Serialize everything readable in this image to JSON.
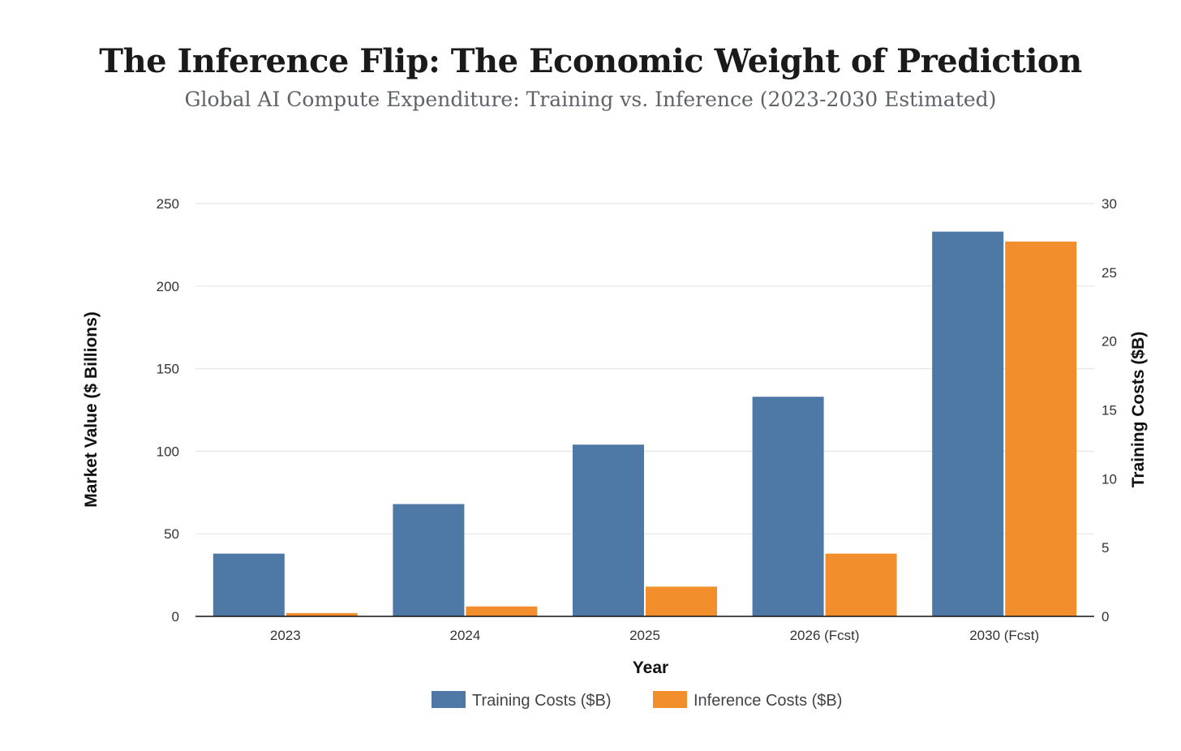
{
  "header": {
    "title": "The Inference Flip: The Economic Weight of Prediction",
    "subtitle": "Global AI Compute Expenditure: Training vs. Inference (2023-2030 Estimated)"
  },
  "chart_data": {
    "type": "bar",
    "categories": [
      "2023",
      "2024",
      "2025",
      "2026 (Fcst)",
      "2030 (Fcst)"
    ],
    "series": [
      {
        "name": "Training Costs ($B)",
        "values": [
          38,
          68,
          104,
          133,
          233
        ],
        "color": "#4e79a7",
        "axis": "left"
      },
      {
        "name": "Inference Costs ($B)",
        "values": [
          2,
          6,
          18,
          38,
          227
        ],
        "color": "#f28e2b",
        "axis": "left"
      }
    ],
    "xlabel": "Year",
    "ylabel": "Market Value ($ Billions)",
    "ylim": [
      0,
      250
    ],
    "yticks": [
      0,
      50,
      100,
      150,
      200,
      250
    ],
    "y2label": "Training Costs ($B)",
    "y2lim": [
      0,
      30
    ],
    "y2ticks": [
      0,
      5,
      10,
      15,
      20,
      25,
      30
    ],
    "grid": true,
    "legend": "bottom"
  }
}
